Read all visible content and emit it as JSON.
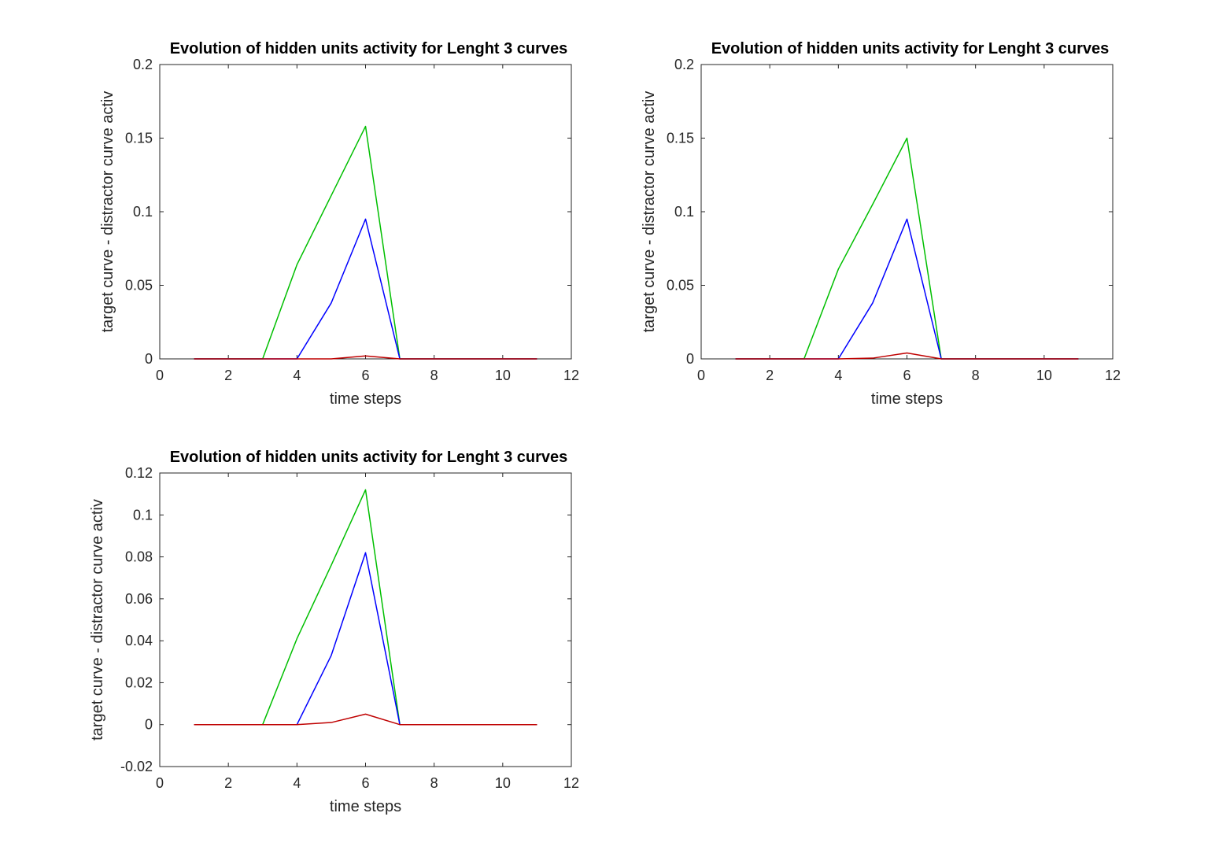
{
  "chart_data": [
    {
      "type": "line",
      "title": "Evolution of hidden units activity for Lenght 3 curves",
      "xlabel": "time steps",
      "ylabel": "target curve - distractor curve activ",
      "xlim": [
        0,
        12
      ],
      "ylim": [
        0,
        0.2
      ],
      "xticks": [
        0,
        2,
        4,
        6,
        8,
        10,
        12
      ],
      "xtick_labels": [
        "0",
        "2",
        "4",
        "6",
        "8",
        "10",
        "12"
      ],
      "yticks": [
        0,
        0.05,
        0.1,
        0.15,
        0.2
      ],
      "ytick_labels": [
        "0",
        "0.05",
        "0.1",
        "0.15",
        "0.2"
      ],
      "x": [
        1,
        2,
        3,
        4,
        5,
        6,
        7,
        8,
        9,
        10,
        11
      ],
      "series": [
        {
          "color": "#00bf00",
          "values": [
            0,
            0,
            0,
            0.064,
            0.111,
            0.158,
            0,
            0,
            0,
            0,
            0
          ]
        },
        {
          "color": "#0000ff",
          "values": [
            0,
            0,
            0,
            0,
            0.038,
            0.095,
            0,
            0,
            0,
            0,
            0
          ]
        },
        {
          "color": "#bf0000",
          "values": [
            0,
            0,
            0,
            0,
            0,
            0.002,
            0,
            0,
            0,
            0,
            0
          ]
        }
      ]
    },
    {
      "type": "line",
      "title": "Evolution of hidden units activity for Lenght 3 curves",
      "xlabel": "time steps",
      "ylabel": "target curve - distractor curve activ",
      "xlim": [
        0,
        12
      ],
      "ylim": [
        0,
        0.2
      ],
      "xticks": [
        0,
        2,
        4,
        6,
        8,
        10,
        12
      ],
      "xtick_labels": [
        "0",
        "2",
        "4",
        "6",
        "8",
        "10",
        "12"
      ],
      "yticks": [
        0,
        0.05,
        0.1,
        0.15,
        0.2
      ],
      "ytick_labels": [
        "0",
        "0.05",
        "0.1",
        "0.15",
        "0.2"
      ],
      "x": [
        1,
        2,
        3,
        4,
        5,
        6,
        7,
        8,
        9,
        10,
        11
      ],
      "series": [
        {
          "color": "#00bf00",
          "values": [
            0,
            0,
            0,
            0.061,
            0.105,
            0.15,
            0,
            0,
            0,
            0,
            0
          ]
        },
        {
          "color": "#0000ff",
          "values": [
            0,
            0,
            0,
            0,
            0.038,
            0.095,
            0,
            0,
            0,
            0,
            0
          ]
        },
        {
          "color": "#bf0000",
          "values": [
            0,
            0,
            0,
            0,
            0.0005,
            0.004,
            0,
            0,
            0,
            0,
            0
          ]
        }
      ]
    },
    {
      "type": "line",
      "title": "Evolution of hidden units activity for Lenght 3 curves",
      "xlabel": "time steps",
      "ylabel": "target curve - distractor curve activ",
      "xlim": [
        0,
        12
      ],
      "ylim": [
        -0.02,
        0.12
      ],
      "xticks": [
        0,
        2,
        4,
        6,
        8,
        10,
        12
      ],
      "xtick_labels": [
        "0",
        "2",
        "4",
        "6",
        "8",
        "10",
        "12"
      ],
      "yticks": [
        -0.02,
        0,
        0.02,
        0.04,
        0.06,
        0.08,
        0.1,
        0.12
      ],
      "ytick_labels": [
        "-0.02",
        "0",
        "0.02",
        "0.04",
        "0.06",
        "0.08",
        "0.1",
        "0.12"
      ],
      "x": [
        1,
        2,
        3,
        4,
        5,
        6,
        7,
        8,
        9,
        10,
        11
      ],
      "series": [
        {
          "color": "#00bf00",
          "values": [
            0,
            0,
            0,
            0.041,
            0.076,
            0.112,
            0,
            0,
            0,
            0,
            0
          ]
        },
        {
          "color": "#0000ff",
          "values": [
            0,
            0,
            0,
            0,
            0.033,
            0.082,
            0,
            0,
            0,
            0,
            0
          ]
        },
        {
          "color": "#bf0000",
          "values": [
            0,
            0,
            0,
            0,
            0.001,
            0.005,
            0,
            0,
            0,
            0,
            0
          ]
        }
      ]
    }
  ]
}
